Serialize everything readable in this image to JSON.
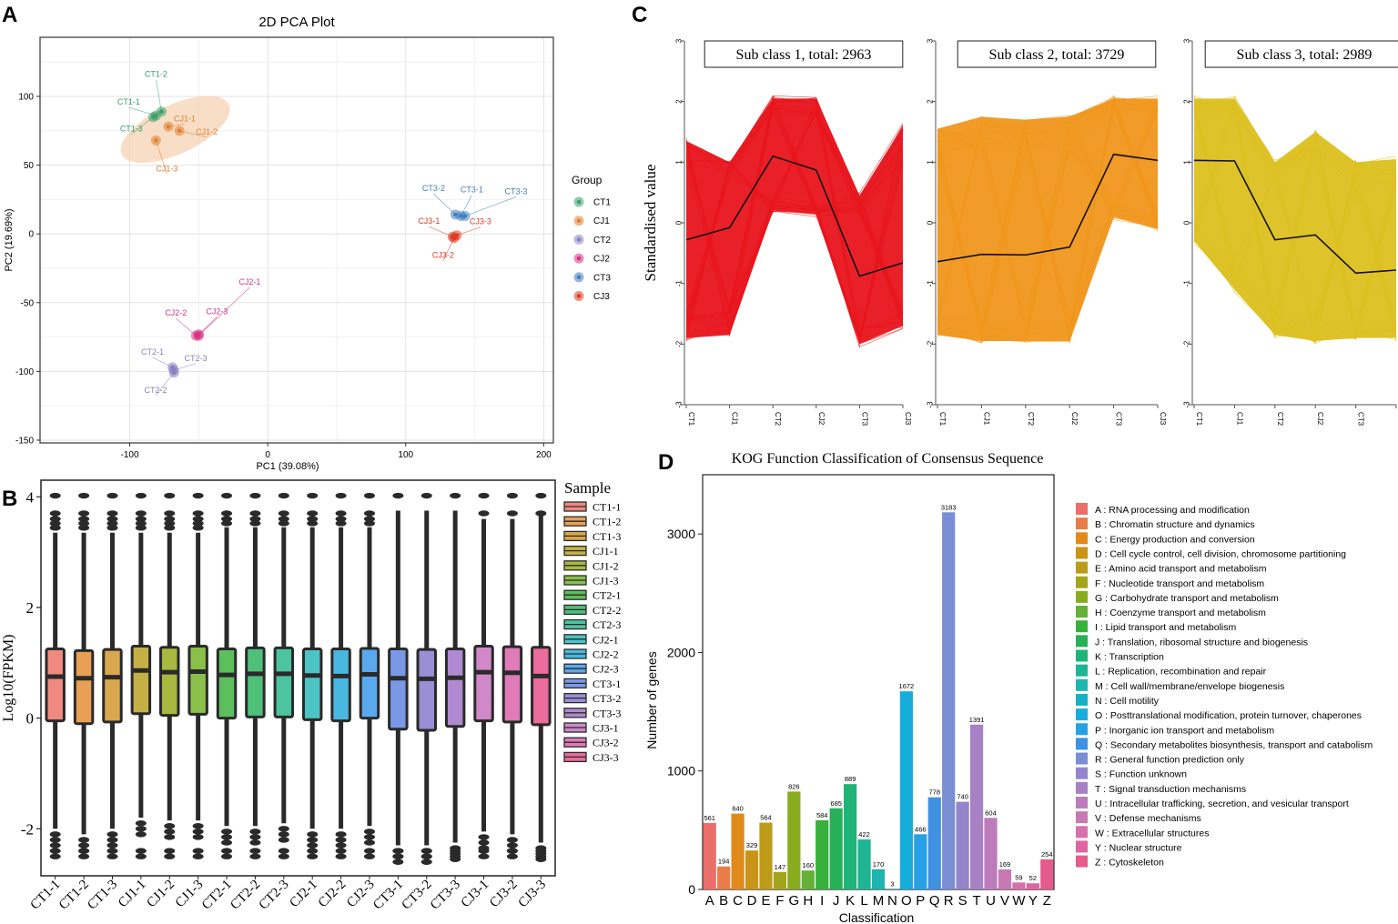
{
  "panels": {
    "A": "A",
    "B": "B",
    "C": "C",
    "D": "D"
  },
  "chart_data": [
    {
      "id": "pca",
      "type": "scatter",
      "title": "2D PCA Plot",
      "xlabel": "PC1 (39.08%)",
      "ylabel": "PC2 (19.69%)",
      "xlim": [
        -165,
        207
      ],
      "ylim": [
        -152,
        143
      ],
      "xticks": [
        -100,
        0,
        100,
        200
      ],
      "yticks": [
        100,
        50,
        0,
        -50,
        -100,
        -150
      ],
      "legend_title": "Group",
      "groups": [
        {
          "name": "CT1",
          "color": "#3a9e6a"
        },
        {
          "name": "CJ1",
          "color": "#e07f30"
        },
        {
          "name": "CT2",
          "color": "#8b7fc0"
        },
        {
          "name": "CJ2",
          "color": "#d63384"
        },
        {
          "name": "CT3",
          "color": "#3f7fbf"
        },
        {
          "name": "CJ3",
          "color": "#e03a22"
        }
      ],
      "points": [
        {
          "label": "CT1-1",
          "group": "CT1",
          "x": -81,
          "y": 86
        },
        {
          "label": "CT1-2",
          "group": "CT1",
          "x": -77,
          "y": 89
        },
        {
          "label": "CT1-3",
          "group": "CT1",
          "x": -83,
          "y": 85
        },
        {
          "label": "CJ1-1",
          "group": "CJ1",
          "x": -72,
          "y": 78
        },
        {
          "label": "CJ1-2",
          "group": "CJ1",
          "x": -64,
          "y": 75
        },
        {
          "label": "CJ1-3",
          "group": "CJ1",
          "x": -81,
          "y": 68
        },
        {
          "label": "CT3-1",
          "group": "CT3",
          "x": 140,
          "y": 13
        },
        {
          "label": "CT3-2",
          "group": "CT3",
          "x": 136,
          "y": 14
        },
        {
          "label": "CT3-3",
          "group": "CT3",
          "x": 143,
          "y": 13
        },
        {
          "label": "CJ3-1",
          "group": "CJ3",
          "x": 134,
          "y": -2
        },
        {
          "label": "CJ3-2",
          "group": "CJ3",
          "x": 135,
          "y": -3
        },
        {
          "label": "CJ3-3",
          "group": "CJ3",
          "x": 137,
          "y": -1
        },
        {
          "label": "CJ2-1",
          "group": "CJ2",
          "x": -50,
          "y": -74
        },
        {
          "label": "CJ2-2",
          "group": "CJ2",
          "x": -52,
          "y": -74
        },
        {
          "label": "CJ2-3",
          "group": "CJ2",
          "x": -50,
          "y": -73
        },
        {
          "label": "CT2-1",
          "group": "CT2",
          "x": -69,
          "y": -97
        },
        {
          "label": "CT2-2",
          "group": "CT2",
          "x": -68,
          "y": -101
        },
        {
          "label": "CT2-3",
          "group": "CT2",
          "x": -68,
          "y": -99
        }
      ]
    },
    {
      "id": "boxplot",
      "type": "box",
      "xlabel": "",
      "ylabel": "Log10(FPKM)",
      "ylim": [
        -2.85,
        4.3
      ],
      "yticks": [
        4,
        2,
        0,
        -2
      ],
      "legend_title": "Sample",
      "samples": [
        {
          "name": "CT1-1",
          "color": "#f08a80",
          "q1": -0.05,
          "median": 0.75,
          "q3": 1.25,
          "wlo": -2.0,
          "whi": 3.35
        },
        {
          "name": "CT1-2",
          "color": "#e8a055",
          "q1": -0.1,
          "median": 0.72,
          "q3": 1.22,
          "wlo": -2.1,
          "whi": 3.35
        },
        {
          "name": "CT1-3",
          "color": "#d9a84c",
          "q1": -0.07,
          "median": 0.74,
          "q3": 1.24,
          "wlo": -2.0,
          "whi": 3.35
        },
        {
          "name": "CJ1-1",
          "color": "#c4b045",
          "q1": 0.08,
          "median": 0.86,
          "q3": 1.3,
          "wlo": -1.8,
          "whi": 3.35
        },
        {
          "name": "CJ1-2",
          "color": "#a8b840",
          "q1": 0.05,
          "median": 0.83,
          "q3": 1.28,
          "wlo": -1.85,
          "whi": 3.35
        },
        {
          "name": "CJ1-3",
          "color": "#8ac04a",
          "q1": 0.07,
          "median": 0.84,
          "q3": 1.3,
          "wlo": -1.85,
          "whi": 3.35
        },
        {
          "name": "CT2-1",
          "color": "#5cbf5c",
          "q1": 0.0,
          "median": 0.78,
          "q3": 1.25,
          "wlo": -1.95,
          "whi": 3.45
        },
        {
          "name": "CT2-2",
          "color": "#4fc07a",
          "q1": 0.02,
          "median": 0.8,
          "q3": 1.27,
          "wlo": -1.95,
          "whi": 3.45
        },
        {
          "name": "CT2-3",
          "color": "#4cc4a0",
          "q1": 0.02,
          "median": 0.8,
          "q3": 1.27,
          "wlo": -1.9,
          "whi": 3.45
        },
        {
          "name": "CJ2-1",
          "color": "#4cc4c4",
          "q1": -0.03,
          "median": 0.77,
          "q3": 1.25,
          "wlo": -2.0,
          "whi": 3.45
        },
        {
          "name": "CJ2-2",
          "color": "#48b8e0",
          "q1": -0.05,
          "median": 0.76,
          "q3": 1.25,
          "wlo": -2.0,
          "whi": 3.45
        },
        {
          "name": "CJ2-3",
          "color": "#5aa8ee",
          "q1": 0.0,
          "median": 0.79,
          "q3": 1.26,
          "wlo": -1.95,
          "whi": 3.45
        },
        {
          "name": "CT3-1",
          "color": "#7a98e6",
          "q1": -0.2,
          "median": 0.72,
          "q3": 1.25,
          "wlo": -2.3,
          "whi": 3.75
        },
        {
          "name": "CT3-2",
          "color": "#9a8ed6",
          "q1": -0.22,
          "median": 0.71,
          "q3": 1.24,
          "wlo": -2.3,
          "whi": 3.75
        },
        {
          "name": "CT3-3",
          "color": "#b08ad0",
          "q1": -0.15,
          "median": 0.73,
          "q3": 1.25,
          "wlo": -2.25,
          "whi": 3.75
        },
        {
          "name": "CJ3-1",
          "color": "#d088c8",
          "q1": -0.05,
          "median": 0.83,
          "q3": 1.3,
          "wlo": -2.05,
          "whi": 3.6
        },
        {
          "name": "CJ3-2",
          "color": "#e07ab8",
          "q1": -0.07,
          "median": 0.82,
          "q3": 1.29,
          "wlo": -2.1,
          "whi": 3.6
        },
        {
          "name": "CJ3-3",
          "color": "#ec6c9c",
          "q1": -0.12,
          "median": 0.76,
          "q3": 1.28,
          "wlo": -2.25,
          "whi": 3.65
        }
      ]
    },
    {
      "id": "subclass",
      "type": "line",
      "ylabel": "Standardised value",
      "ylim": [
        -3,
        3
      ],
      "yticks": [
        3,
        2,
        1,
        0,
        -1,
        -2,
        -3
      ],
      "categories": [
        "CT1",
        "CJ1",
        "CT2",
        "CJ2",
        "CT3",
        "CJ3"
      ],
      "subplots": [
        {
          "title": "Sub class 1, total: 2963",
          "color": "#e8141c",
          "mean": [
            -0.28,
            -0.08,
            1.1,
            0.87,
            -0.88,
            -0.66
          ],
          "upper": [
            1.35,
            1.0,
            2.05,
            2.05,
            0.45,
            1.6
          ],
          "lower": [
            -1.9,
            -1.85,
            0.2,
            0.15,
            -2.0,
            -1.7
          ]
        },
        {
          "title": "Sub class 2, total: 3729",
          "color": "#f0961c",
          "mean": [
            -0.64,
            -0.52,
            -0.53,
            -0.4,
            1.13,
            1.03
          ],
          "upper": [
            1.55,
            1.75,
            1.7,
            1.75,
            2.05,
            2.05
          ],
          "lower": [
            -1.85,
            -1.95,
            -1.95,
            -1.95,
            0.1,
            -0.1
          ]
        },
        {
          "title": "Sub class 3, total: 2989",
          "color": "#dcc020",
          "mean": [
            1.03,
            1.02,
            -0.28,
            -0.2,
            -0.83,
            -0.78
          ],
          "upper": [
            2.05,
            2.05,
            1.0,
            1.5,
            1.0,
            1.05
          ],
          "lower": [
            -0.3,
            -1.1,
            -1.85,
            -1.95,
            -1.9,
            -1.9
          ]
        }
      ]
    },
    {
      "id": "kog",
      "type": "bar",
      "title": "KOG Function Classification of  Consensus Sequence",
      "xlabel": "Classification",
      "ylabel": "Number of genes",
      "ylim": [
        0,
        3500
      ],
      "yticks": [
        0,
        1000,
        2000,
        3000
      ],
      "categories": [
        "A",
        "B",
        "C",
        "D",
        "E",
        "F",
        "G",
        "H",
        "I",
        "J",
        "K",
        "L",
        "M",
        "N",
        "O",
        "P",
        "Q",
        "R",
        "S",
        "T",
        "U",
        "V",
        "W",
        "Y",
        "Z"
      ],
      "values": [
        561,
        194,
        640,
        329,
        564,
        147,
        826,
        160,
        584,
        685,
        889,
        422,
        170,
        3,
        1672,
        466,
        778,
        3183,
        740,
        1391,
        604,
        169,
        59,
        52,
        254
      ],
      "colors": [
        "#ea6e6a",
        "#e87d4a",
        "#e08a1c",
        "#ca9418",
        "#bc9c18",
        "#a4a41c",
        "#88ac20",
        "#64b038",
        "#38b03c",
        "#28b058",
        "#1eb478",
        "#1eb494",
        "#1eb4b0",
        "#18b0c8",
        "#18acdc",
        "#28a0e4",
        "#4090e4",
        "#7a8ed4",
        "#9484cc",
        "#a880c4",
        "#bc7cbc",
        "#c878b4",
        "#d870ac",
        "#e064a0",
        "#e45c8c"
      ],
      "legend": [
        "A : RNA processing and modification",
        "B : Chromatin structure and dynamics",
        "C : Energy production and conversion",
        "D : Cell cycle control, cell division, chromosome partitioning",
        "E : Amino acid transport and metabolism",
        "F : Nucleotide transport and metabolism",
        "G : Carbohydrate transport and metabolism",
        "H : Coenzyme transport and metabolism",
        "I : Lipid transport and metabolism",
        "J : Translation, ribosomal structure and biogenesis",
        "K : Transcription",
        "L : Replication, recombination and repair",
        "M : Cell wall/membrane/envelope biogenesis",
        "N : Cell motility",
        "O : Posttranslational modification, protein turnover, chaperones",
        "P : Inorganic ion transport and metabolism",
        "Q : Secondary metabolites biosynthesis, transport and catabolism",
        "R : General function prediction only",
        "S : Function unknown",
        "T : Signal transduction mechanisms",
        "U : Intracellular trafficking, secretion, and vesicular transport",
        "V : Defense mechanisms",
        "W : Extracellular structures",
        "Y : Nuclear structure",
        "Z : Cytoskeleton"
      ]
    }
  ]
}
